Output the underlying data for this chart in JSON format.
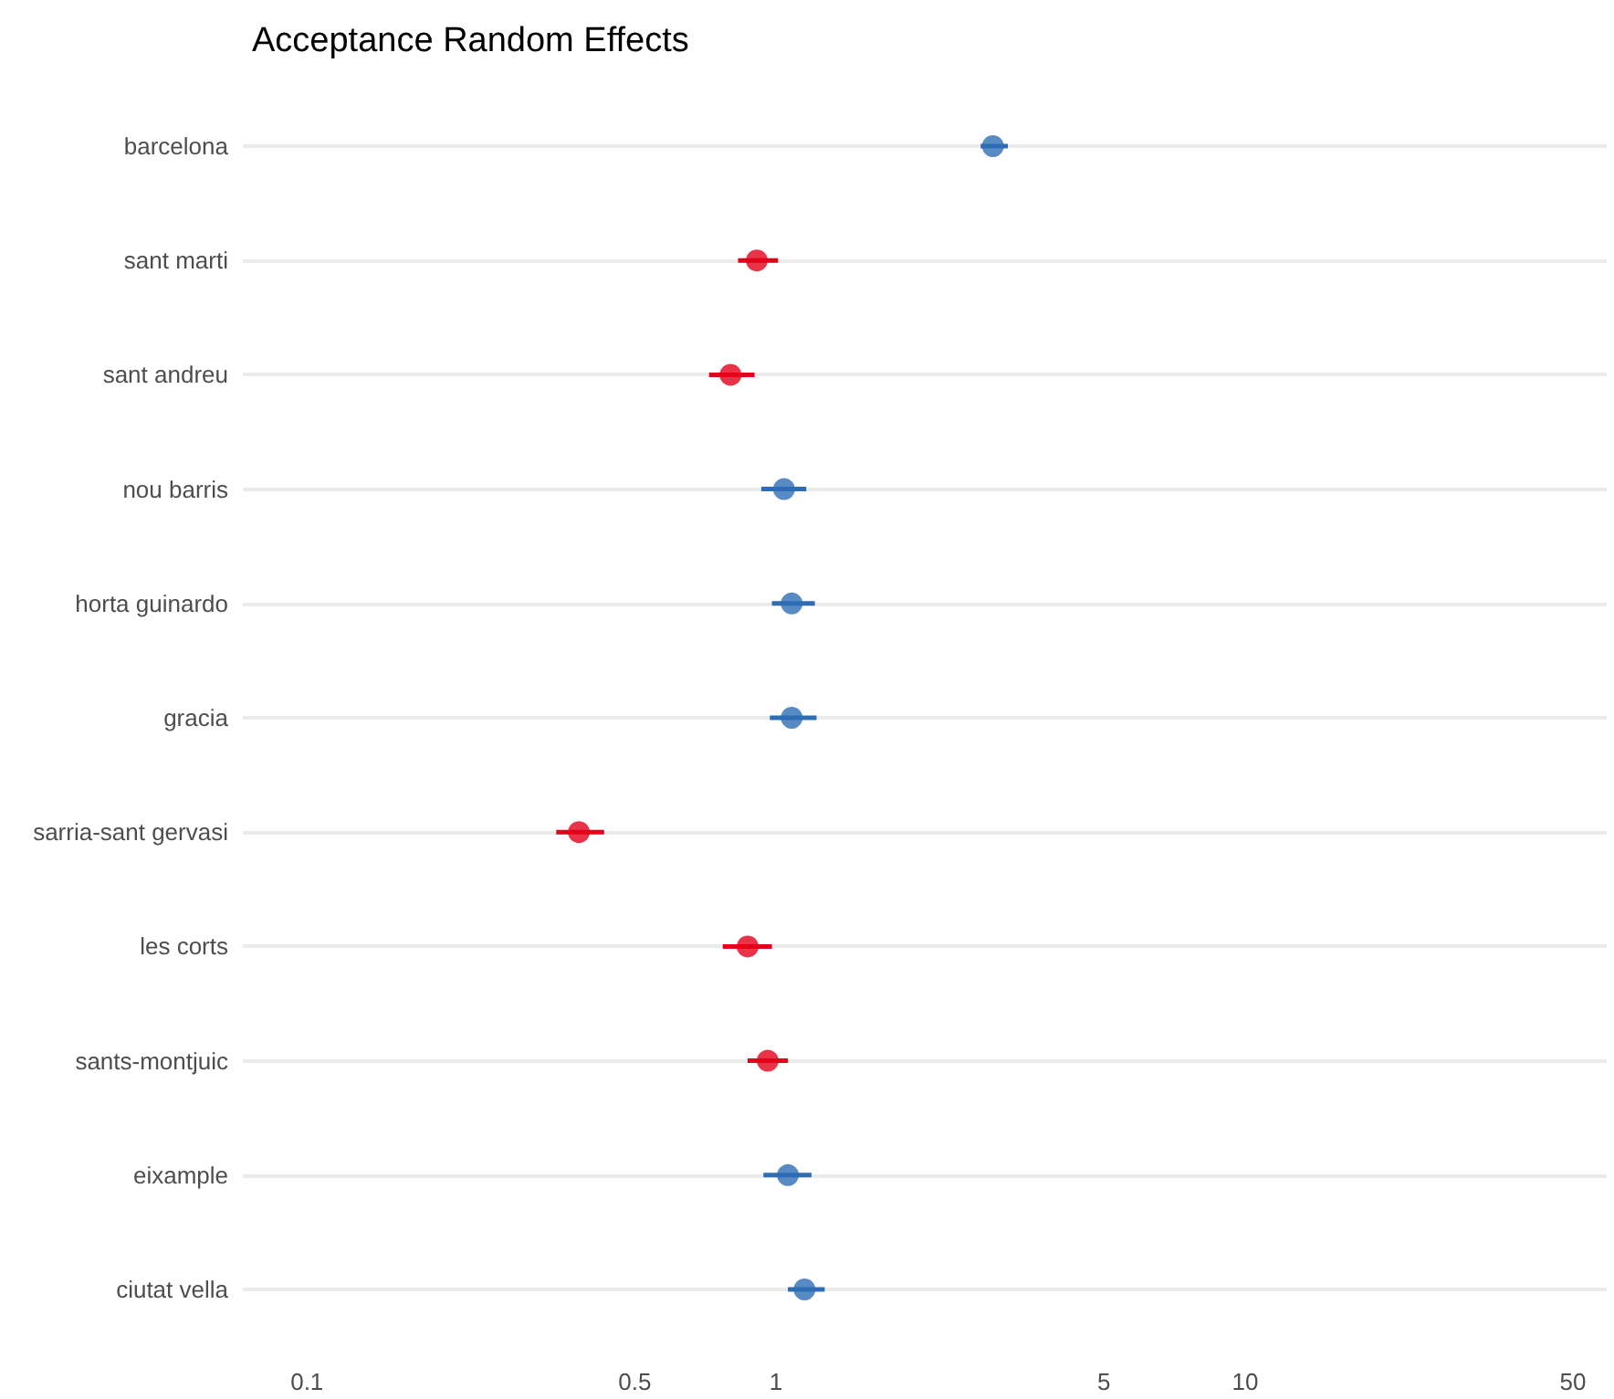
{
  "chart_data": {
    "type": "scatter",
    "title": "Acceptance Random Effects",
    "orientation": "horizontal",
    "categories": [
      "barcelona",
      "sant marti",
      "sant andreu",
      "nou barris",
      "horta guinardo",
      "gracia",
      "sarria-sant gervasi",
      "les corts",
      "sants-montjuic",
      "eixample",
      "ciutat vella"
    ],
    "values": [
      2.9,
      0.91,
      0.8,
      1.04,
      1.08,
      1.08,
      0.38,
      0.87,
      0.96,
      1.06,
      1.15
    ],
    "errors": [
      [
        2.73,
        3.12
      ],
      [
        0.83,
        1.01
      ],
      [
        0.72,
        0.9
      ],
      [
        0.93,
        1.16
      ],
      [
        0.98,
        1.21
      ],
      [
        0.97,
        1.22
      ],
      [
        0.34,
        0.43
      ],
      [
        0.77,
        0.98
      ],
      [
        0.87,
        1.06
      ],
      [
        0.94,
        1.19
      ],
      [
        1.06,
        1.27
      ]
    ],
    "colors": [
      "#2e6db4",
      "#e3001b",
      "#e3001b",
      "#2e6db4",
      "#2e6db4",
      "#2e6db4",
      "#e3001b",
      "#e3001b",
      "#e3001b",
      "#2e6db4",
      "#2e6db4"
    ],
    "log": "x",
    "xlim": [
      0.073,
      59
    ],
    "xticks": [
      0.1,
      0.5,
      1,
      5,
      10,
      50
    ],
    "grid": "y",
    "marker": "circle"
  }
}
